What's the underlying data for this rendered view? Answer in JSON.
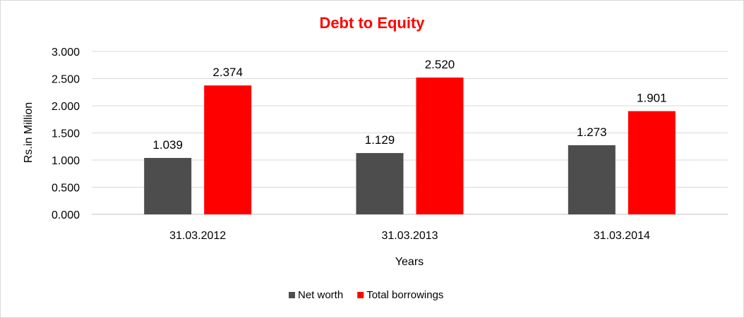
{
  "chart_data": {
    "type": "bar",
    "title": "Debt to Equity",
    "xlabel": "Years",
    "ylabel": "Rs.in Million",
    "categories": [
      "31.03.2012",
      "31.03.2013",
      "31.03.2014"
    ],
    "series": [
      {
        "name": "Net worth",
        "values": [
          1.039,
          1.129,
          1.273
        ],
        "color": "#4d4d4d",
        "labels": [
          "1.039",
          "1.129",
          "1.273"
        ]
      },
      {
        "name": "Total borrowings",
        "values": [
          2.374,
          2.52,
          1.901
        ],
        "color": "#ff0000",
        "labels": [
          "2.374",
          "2.520",
          "1.901"
        ]
      }
    ],
    "ylim": [
      0,
      3
    ],
    "yticks": [
      "0.000",
      "0.500",
      "1.000",
      "1.500",
      "2.000",
      "2.500",
      "3.000"
    ],
    "grid": true,
    "legend_position": "bottom",
    "title_color": "#ff0000"
  }
}
